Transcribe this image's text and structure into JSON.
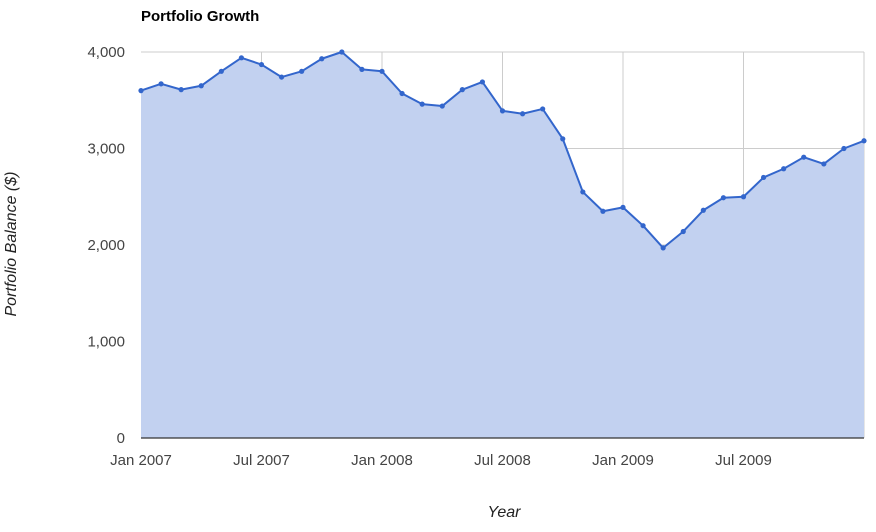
{
  "chart_data": {
    "type": "area",
    "title": "Portfolio Growth",
    "xlabel": "Year",
    "ylabel": "Portfolio Balance ($)",
    "ylim": [
      0,
      4000
    ],
    "y_ticks": [
      {
        "value": 0,
        "label": "0"
      },
      {
        "value": 1000,
        "label": "1,000"
      },
      {
        "value": 2000,
        "label": "2,000"
      },
      {
        "value": 3000,
        "label": "3,000"
      },
      {
        "value": 4000,
        "label": "4,000"
      }
    ],
    "x_ticks": [
      {
        "value": "2007-01",
        "label": "Jan 2007"
      },
      {
        "value": "2007-07",
        "label": "Jul 2007"
      },
      {
        "value": "2008-01",
        "label": "Jan 2008"
      },
      {
        "value": "2008-07",
        "label": "Jul 2008"
      },
      {
        "value": "2009-01",
        "label": "Jan 2009"
      },
      {
        "value": "2009-07",
        "label": "Jul 2009"
      }
    ],
    "xlim": [
      "2007-01",
      "2010-01"
    ],
    "grid": true,
    "legend": "none",
    "colors": {
      "line": "#3366cc",
      "fill": "#c2d1f0",
      "grid": "#cccccc"
    },
    "series": [
      {
        "x": [
          "2007-01",
          "2007-02",
          "2007-03",
          "2007-04",
          "2007-05",
          "2007-06",
          "2007-07",
          "2007-08",
          "2007-09",
          "2007-10",
          "2007-11",
          "2007-12",
          "2008-01",
          "2008-02",
          "2008-03",
          "2008-04",
          "2008-05",
          "2008-06",
          "2008-07",
          "2008-08",
          "2008-09",
          "2008-10",
          "2008-11",
          "2008-12",
          "2009-01",
          "2009-02",
          "2009-03",
          "2009-04",
          "2009-05",
          "2009-06",
          "2009-07",
          "2009-08",
          "2009-09",
          "2009-10",
          "2009-11",
          "2009-12",
          "2010-01"
        ],
        "values": [
          3600,
          3670,
          3610,
          3650,
          3800,
          3940,
          3870,
          3740,
          3800,
          3930,
          4000,
          3820,
          3800,
          3570,
          3460,
          3440,
          3610,
          3690,
          3390,
          3360,
          3410,
          3100,
          2550,
          2350,
          2390,
          2200,
          1970,
          2140,
          2360,
          2490,
          2500,
          2700,
          2790,
          2910,
          2840,
          3000,
          3080
        ]
      }
    ]
  }
}
